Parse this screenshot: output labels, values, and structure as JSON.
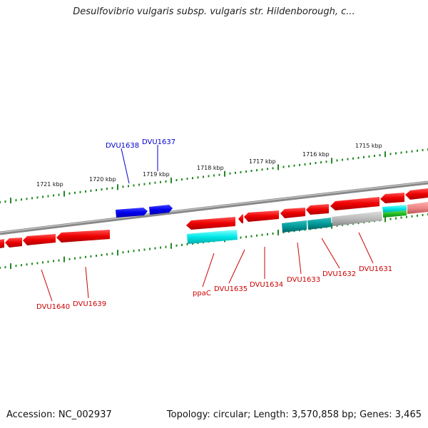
{
  "title": "Desulfovibrio vulgaris subsp. vulgaris str. Hildenborough, c...",
  "footer": {
    "accession": "Accession: NC_002937",
    "summary": "Topology: circular; Length: 3,570,858 bp; Genes: 3,465"
  },
  "ruler_labels": [
    "1721 kbp",
    "1720 kbp",
    "1719 kbp",
    "1718 kbp",
    "1717 kbp",
    "1716 kbp",
    "1715 kbp"
  ],
  "gene_labels_forward": [
    "DVU1638",
    "DVU1637"
  ],
  "gene_labels_reverse": [
    "DVU1640",
    "DVU1639",
    "ppaC",
    "DVU1635",
    "DVU1634",
    "DVU1633",
    "DVU1632",
    "DVU1631"
  ],
  "colors": {
    "forward_gene": "#0000ee",
    "reverse_gene": "#ee0000",
    "rna_cyan": "#00dddd",
    "teal": "#00aaaa",
    "grey": "#bbbbbb",
    "pink": "#ee8888",
    "green": "#22bb22",
    "backbone": "#888888",
    "tick": "#228822"
  }
}
